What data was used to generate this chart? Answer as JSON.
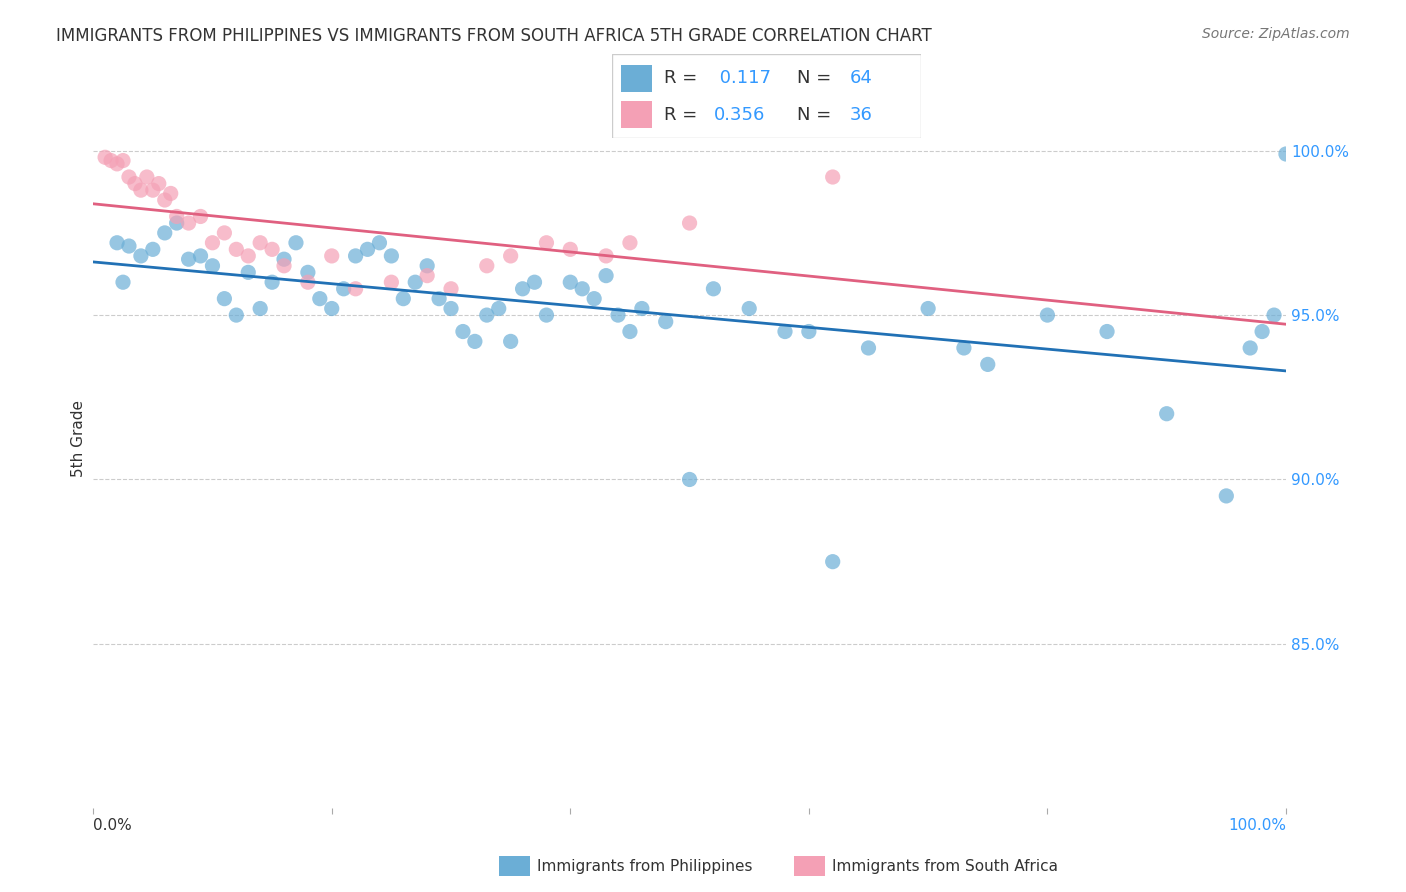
{
  "title": "IMMIGRANTS FROM PHILIPPINES VS IMMIGRANTS FROM SOUTH AFRICA 5TH GRADE CORRELATION CHART",
  "source": "Source: ZipAtlas.com",
  "ylabel": "5th Grade",
  "legend_r1": "R =  0.117",
  "legend_n1": "N = 64",
  "legend_r2": "R = 0.356",
  "legend_n2": "N = 36",
  "color_blue": "#6baed6",
  "color_pink": "#f4a0b5",
  "color_blue_line": "#2171b5",
  "color_pink_line": "#e06080",
  "color_grid": "#cccccc",
  "blue_x": [
    0.02,
    0.03,
    0.025,
    0.04,
    0.05,
    0.06,
    0.07,
    0.08,
    0.09,
    0.1,
    0.11,
    0.12,
    0.13,
    0.14,
    0.15,
    0.16,
    0.17,
    0.18,
    0.19,
    0.2,
    0.21,
    0.22,
    0.23,
    0.24,
    0.25,
    0.26,
    0.27,
    0.28,
    0.29,
    0.3,
    0.31,
    0.32,
    0.33,
    0.34,
    0.35,
    0.36,
    0.37,
    0.38,
    0.4,
    0.41,
    0.42,
    0.43,
    0.44,
    0.45,
    0.46,
    0.48,
    0.5,
    0.52,
    0.55,
    0.58,
    0.6,
    0.62,
    0.65,
    0.7,
    0.73,
    0.75,
    0.8,
    0.85,
    0.9,
    0.95,
    0.97,
    0.98,
    0.99,
    1.0
  ],
  "blue_y": [
    0.972,
    0.971,
    0.96,
    0.968,
    0.97,
    0.975,
    0.978,
    0.967,
    0.968,
    0.965,
    0.955,
    0.95,
    0.963,
    0.952,
    0.96,
    0.967,
    0.972,
    0.963,
    0.955,
    0.952,
    0.958,
    0.968,
    0.97,
    0.972,
    0.968,
    0.955,
    0.96,
    0.965,
    0.955,
    0.952,
    0.945,
    0.942,
    0.95,
    0.952,
    0.942,
    0.958,
    0.96,
    0.95,
    0.96,
    0.958,
    0.955,
    0.962,
    0.95,
    0.945,
    0.952,
    0.948,
    0.9,
    0.958,
    0.952,
    0.945,
    0.945,
    0.875,
    0.94,
    0.952,
    0.94,
    0.935,
    0.95,
    0.945,
    0.92,
    0.895,
    0.94,
    0.945,
    0.95,
    0.999
  ],
  "pink_x": [
    0.01,
    0.015,
    0.02,
    0.025,
    0.03,
    0.035,
    0.04,
    0.045,
    0.05,
    0.055,
    0.06,
    0.065,
    0.07,
    0.08,
    0.09,
    0.1,
    0.11,
    0.12,
    0.13,
    0.14,
    0.15,
    0.16,
    0.18,
    0.2,
    0.22,
    0.25,
    0.28,
    0.3,
    0.33,
    0.35,
    0.38,
    0.4,
    0.43,
    0.45,
    0.5,
    0.62
  ],
  "pink_y": [
    0.998,
    0.997,
    0.996,
    0.997,
    0.992,
    0.99,
    0.988,
    0.992,
    0.988,
    0.99,
    0.985,
    0.987,
    0.98,
    0.978,
    0.98,
    0.972,
    0.975,
    0.97,
    0.968,
    0.972,
    0.97,
    0.965,
    0.96,
    0.968,
    0.958,
    0.96,
    0.962,
    0.958,
    0.965,
    0.968,
    0.972,
    0.97,
    0.968,
    0.972,
    0.978,
    0.992
  ]
}
